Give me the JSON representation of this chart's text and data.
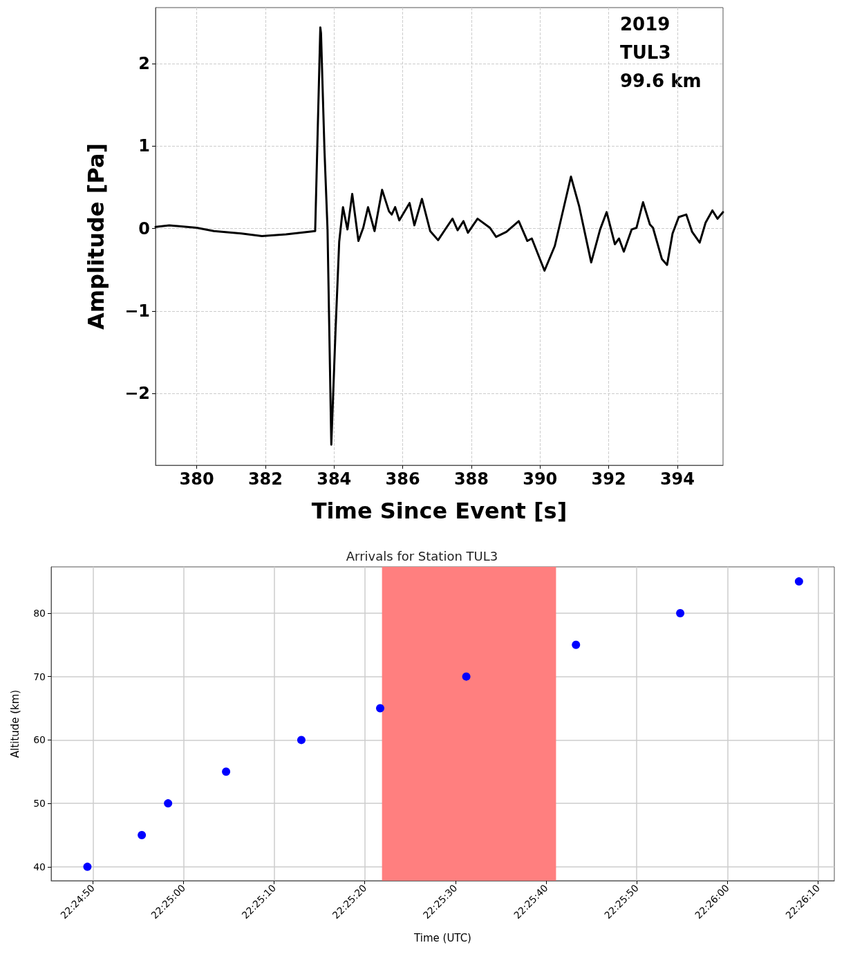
{
  "chart_data": [
    {
      "type": "line",
      "xlabel": "Time Since Event [s]",
      "ylabel": "Amplitude [Pa]",
      "annotations": [
        "2019",
        "TUL3",
        "99.6 km"
      ],
      "xlim": [
        378.8,
        395.33
      ],
      "xticks": [
        380,
        382,
        384,
        386,
        388,
        390,
        392,
        394
      ],
      "ylim": [
        -2.87,
        2.68
      ],
      "yticks": [
        -2,
        -1,
        0,
        1,
        2
      ],
      "grid": true,
      "marker": "none",
      "line_style": "solid",
      "series": [
        {
          "color": "#000000",
          "x": [
            378.8,
            379.2,
            380.0,
            380.5,
            381.3,
            381.9,
            382.6,
            383.45,
            383.6,
            383.62,
            383.72,
            383.81,
            383.92,
            384.04,
            384.15,
            384.26,
            384.39,
            384.53,
            384.71,
            384.85,
            384.99,
            385.18,
            385.4,
            385.6,
            385.68,
            385.78,
            385.9,
            386.2,
            386.34,
            386.56,
            386.8,
            387.03,
            387.27,
            387.45,
            387.6,
            387.77,
            387.9,
            388.18,
            388.54,
            388.72,
            389.02,
            389.38,
            389.63,
            389.76,
            390.13,
            390.43,
            390.9,
            391.14,
            391.49,
            391.75,
            391.94,
            392.18,
            392.3,
            392.44,
            392.67,
            392.81,
            393.0,
            393.2,
            393.29,
            393.55,
            393.7,
            393.86,
            394.04,
            394.26,
            394.43,
            394.65,
            394.82,
            395.02,
            395.17,
            395.33
          ],
          "values": [
            0.02,
            0.04,
            0.01,
            -0.03,
            -0.06,
            -0.09,
            -0.07,
            -0.03,
            2.44,
            2.37,
            0.96,
            -0.01,
            -2.62,
            -1.27,
            -0.16,
            0.26,
            -0.01,
            0.42,
            -0.15,
            0.01,
            0.26,
            -0.03,
            0.47,
            0.21,
            0.17,
            0.26,
            0.1,
            0.31,
            0.04,
            0.36,
            -0.03,
            -0.14,
            0.01,
            0.12,
            -0.02,
            0.09,
            -0.05,
            0.12,
            0.01,
            -0.1,
            -0.04,
            0.09,
            -0.15,
            -0.12,
            -0.51,
            -0.21,
            0.63,
            0.27,
            -0.41,
            -0.01,
            0.2,
            -0.19,
            -0.12,
            -0.28,
            -0.01,
            0.01,
            0.32,
            0.05,
            0.01,
            -0.37,
            -0.44,
            -0.06,
            0.14,
            0.17,
            -0.04,
            -0.17,
            0.07,
            0.22,
            0.12,
            0.2
          ]
        }
      ]
    },
    {
      "type": "scatter",
      "title": "Arrivals for Station TUL3",
      "xlabel": "Time (UTC)",
      "ylabel": "Altitude (km)",
      "xlim": [
        22.412611,
        22.436611
      ],
      "xticks": [
        {
          "value": 22.413889,
          "label": "22:24:50"
        },
        {
          "value": 22.416667,
          "label": "22:25:00"
        },
        {
          "value": 22.419444,
          "label": "22:25:10"
        },
        {
          "value": 22.422222,
          "label": "22:25:20"
        },
        {
          "value": 22.425,
          "label": "22:25:30"
        },
        {
          "value": 22.427778,
          "label": "22:25:40"
        },
        {
          "value": 22.430556,
          "label": "22:25:50"
        },
        {
          "value": 22.433333,
          "label": "22:26:00"
        },
        {
          "value": 22.436111,
          "label": "22:26:10"
        }
      ],
      "ylim": [
        37.8,
        87.3
      ],
      "yticks": [
        40,
        50,
        60,
        70,
        80
      ],
      "grid": true,
      "marker": "circle",
      "bands": [
        {
          "axis": "x",
          "from": 22.42275,
          "to": 22.428083,
          "color": "#ff7f7f"
        }
      ],
      "series": [
        {
          "color": "#0000ff",
          "x": [
            22.413722,
            22.415389,
            22.416194,
            22.417972,
            22.420278,
            22.422694,
            22.425333,
            22.428694,
            22.431889,
            22.435528
          ],
          "values": [
            40,
            45,
            50,
            55,
            60,
            65,
            70,
            75,
            80,
            85
          ]
        }
      ]
    }
  ]
}
